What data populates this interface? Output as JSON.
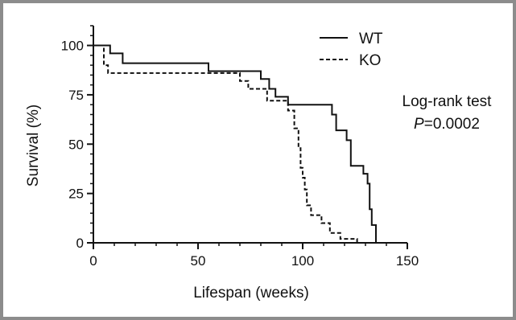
{
  "chart_data": {
    "type": "line",
    "step": true,
    "xlabel": "Lifespan (weeks)",
    "ylabel": "Survival (%)",
    "xlim": [
      0,
      150
    ],
    "ylim": [
      0,
      110
    ],
    "xticks": [
      0,
      50,
      100,
      150
    ],
    "yticks": [
      0,
      25,
      50,
      75,
      100
    ],
    "grid": false,
    "legend_position": "top-center",
    "annotation": {
      "line1": "Log-rank test",
      "p_prefix": "P",
      "p_value": "=0.0002"
    },
    "series": [
      {
        "name": "WT",
        "style": "solid",
        "color": "#111111",
        "x": [
          0,
          8,
          8,
          14,
          14,
          55,
          55,
          80,
          80,
          84,
          84,
          87,
          87,
          93,
          93,
          114,
          114,
          116,
          116,
          121,
          121,
          123,
          123,
          129,
          129,
          131,
          131,
          132,
          132,
          133,
          133,
          135,
          135,
          142,
          142
        ],
        "y": [
          100,
          100,
          96,
          96,
          91,
          91,
          87,
          87,
          83,
          83,
          78,
          78,
          74,
          74,
          70,
          70,
          65,
          65,
          57,
          57,
          52,
          52,
          39,
          39,
          35,
          35,
          30,
          30,
          17,
          17,
          9,
          9,
          0,
          0,
          0
        ]
      },
      {
        "name": "KO",
        "style": "dashed",
        "color": "#111111",
        "x": [
          0,
          5,
          5,
          7,
          7,
          70,
          70,
          74,
          74,
          83,
          83,
          93,
          93,
          96,
          96,
          98,
          98,
          99,
          99,
          100,
          100,
          101,
          101,
          102,
          102,
          104,
          104,
          109,
          109,
          113,
          113,
          118,
          118,
          126,
          126
        ],
        "y": [
          100,
          100,
          90,
          90,
          86,
          86,
          82,
          82,
          78,
          78,
          72,
          72,
          67,
          67,
          58,
          58,
          48,
          48,
          38,
          38,
          33,
          33,
          27,
          27,
          19,
          19,
          14,
          14,
          10,
          10,
          5,
          5,
          2,
          2,
          0
        ]
      }
    ]
  }
}
